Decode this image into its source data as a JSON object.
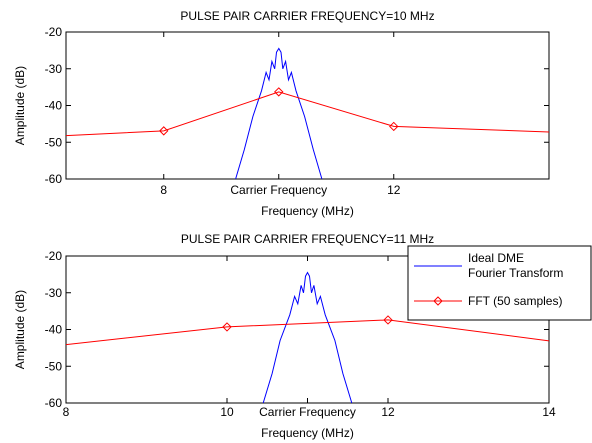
{
  "chart_data": [
    {
      "type": "line",
      "title": "PULSE PAIR CARRIER FREQUENCY=10 MHz",
      "xlabel": "Frequency (MHz)",
      "ylabel": "Amplitude (dB)",
      "xlim": [
        6.3,
        14.7
      ],
      "ylim": [
        -60,
        -20
      ],
      "xticks": [
        8,
        10,
        12
      ],
      "xticklabels": [
        "8",
        "Carrier Frequency",
        "12"
      ],
      "yticks": [
        -20,
        -30,
        -40,
        -50,
        -60
      ],
      "yticklabels": [
        "-20",
        "-30",
        "-40",
        "-50",
        "-60"
      ],
      "grid": false,
      "series": [
        {
          "name": "Ideal DME Fourier Transform",
          "color": "#0000ff",
          "peak_x": 10,
          "x": [
            9.25,
            9.4,
            9.55,
            9.7,
            9.78,
            9.83,
            9.88,
            9.93,
            9.96,
            10.0,
            10.04,
            10.07,
            10.12,
            10.17,
            10.22,
            10.3,
            10.45,
            10.6,
            10.75
          ],
          "y": [
            -60,
            -52,
            -43,
            -36,
            -31,
            -33,
            -28,
            -30,
            -25.5,
            -24.5,
            -25.5,
            -30,
            -28,
            -33,
            -31,
            -36,
            -43,
            -52,
            -60
          ]
        },
        {
          "name": "FFT (50 samples)",
          "color": "#ff0000",
          "marker": "diamond",
          "x": [
            6.3,
            8,
            10,
            12,
            14.7
          ],
          "y": [
            -48.2,
            -46.9,
            -36.3,
            -45.7,
            -47.2
          ]
        }
      ]
    },
    {
      "type": "line",
      "title": "PULSE PAIR CARRIER FREQUENCY=11 MHz",
      "xlabel": "Frequency (MHz)",
      "ylabel": "Amplitude (dB)",
      "xlim": [
        8,
        14
      ],
      "ylim": [
        -60,
        -20
      ],
      "xticks": [
        8,
        10,
        11,
        12,
        14
      ],
      "xticklabels": [
        "8",
        "10",
        "Carrier Frequency",
        "12",
        "14"
      ],
      "yticks": [
        -20,
        -30,
        -40,
        -50,
        -60
      ],
      "yticklabels": [
        "-20",
        "-30",
        "-40",
        "-50",
        "-60"
      ],
      "grid": false,
      "legend": "top-right",
      "series": [
        {
          "name": "Ideal DME Fourier Transform",
          "legend_lines": [
            "Ideal DME",
            "Fourier Transform"
          ],
          "color": "#0000ff",
          "peak_x": 11,
          "x": [
            10.45,
            10.56,
            10.66,
            10.78,
            10.84,
            10.88,
            10.92,
            10.95,
            10.975,
            11.0,
            11.025,
            11.05,
            11.08,
            11.12,
            11.16,
            11.22,
            11.34,
            11.44,
            11.55
          ],
          "y": [
            -60,
            -52,
            -43,
            -36,
            -31,
            -33,
            -28,
            -30,
            -25.5,
            -24.5,
            -25.5,
            -30,
            -28,
            -33,
            -31,
            -36,
            -43,
            -52,
            -60
          ]
        },
        {
          "name": "FFT (50 samples)",
          "color": "#ff0000",
          "marker": "diamond",
          "x": [
            8,
            10,
            12,
            14
          ],
          "y": [
            -44.1,
            -39.3,
            -37.4,
            -43.1
          ]
        }
      ]
    }
  ]
}
